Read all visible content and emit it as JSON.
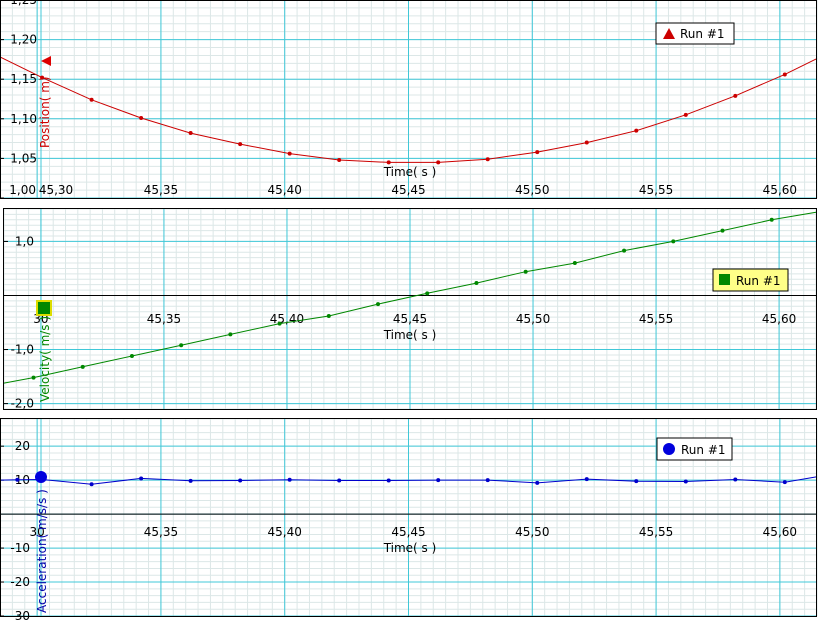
{
  "chart_data": [
    {
      "type": "line",
      "id": "position",
      "xlabel": "Time( s )",
      "ylabel": "Position( m)",
      "xlim": [
        45.285,
        45.615
      ],
      "ylim": [
        1.0,
        1.25
      ],
      "x_ticks": [
        "45,30",
        "45,35",
        "45,40",
        "45,45",
        "45,50",
        "45,55",
        "45,60"
      ],
      "y_ticks": [
        "1,25",
        "1,20",
        "1,15",
        "1,10",
        "1,05",
        "1,00"
      ],
      "series": [
        {
          "name": "Run #1",
          "color": "#cc0000",
          "marker": "triangle",
          "x": [
            45.285,
            45.302,
            45.322,
            45.342,
            45.362,
            45.382,
            45.402,
            45.422,
            45.442,
            45.462,
            45.482,
            45.502,
            45.522,
            45.542,
            45.562,
            45.582,
            45.602,
            45.615
          ],
          "y": [
            1.178,
            1.152,
            1.124,
            1.101,
            1.082,
            1.068,
            1.056,
            1.048,
            1.045,
            1.045,
            1.049,
            1.058,
            1.07,
            1.085,
            1.105,
            1.129,
            1.156,
            1.176
          ]
        }
      ]
    },
    {
      "type": "line",
      "id": "velocity",
      "xlabel": "Time( s )",
      "ylabel": "Velocity( m/s )",
      "xlim": [
        45.285,
        45.615
      ],
      "ylim": [
        -2.1,
        1.6
      ],
      "x_ticks": [
        "30",
        "45,35",
        "45,40",
        "45,45",
        "45,50",
        "45,55",
        "45,60"
      ],
      "y_ticks": [
        "1,0",
        "-1,0",
        "-2,0"
      ],
      "series": [
        {
          "name": "Run #1",
          "color": "#008800",
          "marker": "square",
          "x": [
            45.285,
            45.297,
            45.317,
            45.337,
            45.357,
            45.377,
            45.397,
            45.417,
            45.437,
            45.457,
            45.477,
            45.497,
            45.517,
            45.537,
            45.557,
            45.577,
            45.597,
            45.615
          ],
          "y": [
            -1.62,
            -1.52,
            -1.32,
            -1.12,
            -0.92,
            -0.72,
            -0.52,
            -0.38,
            -0.16,
            0.04,
            0.23,
            0.44,
            0.6,
            0.83,
            1.0,
            1.2,
            1.4,
            1.54
          ]
        }
      ]
    },
    {
      "type": "line",
      "id": "acceleration",
      "xlabel": "Time( s )",
      "ylabel": "Acceleration( m/s/s )",
      "xlim": [
        45.285,
        45.615
      ],
      "ylim": [
        -30,
        28
      ],
      "x_ticks": [
        "30",
        "45,35",
        "45,40",
        "45,45",
        "45,50",
        "45,55",
        "45,60"
      ],
      "y_ticks": [
        "20",
        "10",
        "-10",
        "-20",
        "-30"
      ],
      "series": [
        {
          "name": "Run #1",
          "color": "#0000cc",
          "marker": "circle",
          "x": [
            45.285,
            45.292,
            45.302,
            45.322,
            45.342,
            45.362,
            45.382,
            45.402,
            45.422,
            45.442,
            45.462,
            45.482,
            45.502,
            45.522,
            45.542,
            45.562,
            45.582,
            45.602,
            45.615
          ],
          "y": [
            10.0,
            10.1,
            10.2,
            8.8,
            10.5,
            9.8,
            9.9,
            10.1,
            9.9,
            9.9,
            10.0,
            10.0,
            9.2,
            10.3,
            9.7,
            9.6,
            10.2,
            9.4,
            11.0
          ]
        }
      ]
    }
  ]
}
